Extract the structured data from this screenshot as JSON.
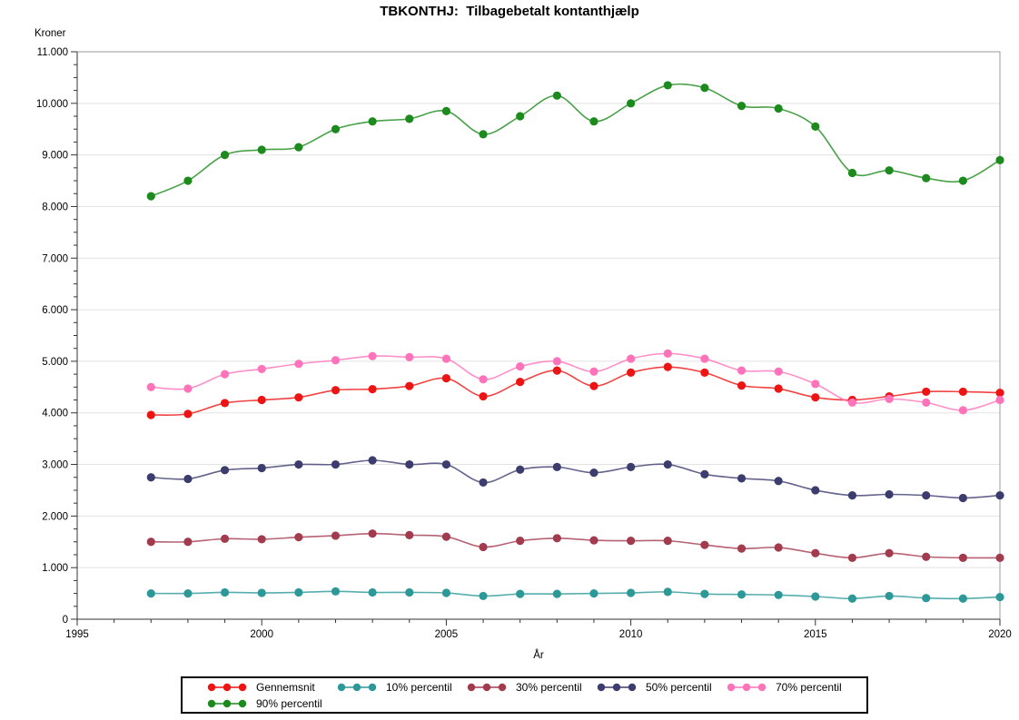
{
  "title": "TBKONTHJ:  Tilbagebetalt kontanthjælp",
  "chart_data": {
    "type": "line",
    "x": [
      1997,
      1998,
      1999,
      2000,
      2001,
      2002,
      2003,
      2004,
      2005,
      2006,
      2007,
      2008,
      2009,
      2010,
      2011,
      2012,
      2013,
      2014,
      2015,
      2016,
      2017,
      2018,
      2019,
      2020
    ],
    "xlabel": "År",
    "ylabel": "Kroner",
    "xlim": [
      1995,
      2020
    ],
    "ylim": [
      0,
      11000
    ],
    "x_ticks": [
      1995,
      2000,
      2005,
      2010,
      2015,
      2020
    ],
    "y_ticks": [
      0,
      1000,
      2000,
      3000,
      4000,
      5000,
      6000,
      7000,
      8000,
      9000,
      10000,
      11000
    ],
    "y_tick_labels": [
      "0",
      "1.000",
      "2.000",
      "3.000",
      "4.000",
      "5.000",
      "6.000",
      "7.000",
      "8.000",
      "9.000",
      "10.000",
      "11.000"
    ],
    "grid": "horizontal-major",
    "legend_position": "bottom",
    "frame_color": "#999999",
    "grid_color": "#e3e3e3",
    "axis_color": "#333333",
    "series": [
      {
        "name": "Gennemsnit",
        "color": "#ed1414",
        "values": [
          3960,
          3980,
          4190,
          4250,
          4300,
          4440,
          4460,
          4520,
          4670,
          4320,
          4600,
          4820,
          4520,
          4780,
          4890,
          4780,
          4530,
          4470,
          4300,
          4250,
          4320,
          4410,
          4410,
          4390
        ]
      },
      {
        "name": "10% percentil",
        "color": "#2d9898",
        "values": [
          500,
          500,
          520,
          510,
          520,
          540,
          520,
          520,
          510,
          450,
          490,
          490,
          500,
          510,
          530,
          490,
          480,
          470,
          440,
          400,
          450,
          410,
          400,
          430
        ]
      },
      {
        "name": "30% percentil",
        "color": "#a33b4f",
        "values": [
          1500,
          1500,
          1560,
          1550,
          1590,
          1620,
          1660,
          1630,
          1600,
          1400,
          1520,
          1570,
          1530,
          1520,
          1520,
          1440,
          1370,
          1390,
          1280,
          1190,
          1280,
          1210,
          1190,
          1190
        ]
      },
      {
        "name": "50% percentil",
        "color": "#3c3c6e",
        "values": [
          2750,
          2720,
          2890,
          2930,
          3000,
          3000,
          3080,
          3000,
          3000,
          2650,
          2900,
          2950,
          2840,
          2950,
          3000,
          2810,
          2730,
          2680,
          2500,
          2400,
          2420,
          2400,
          2350,
          2400
        ]
      },
      {
        "name": "70% percentil",
        "color": "#ff73ba",
        "values": [
          4500,
          4470,
          4750,
          4850,
          4950,
          5020,
          5100,
          5080,
          5050,
          4650,
          4900,
          5000,
          4800,
          5050,
          5150,
          5050,
          4820,
          4800,
          4560,
          4200,
          4270,
          4200,
          4050,
          4250
        ]
      },
      {
        "name": "90% percentil",
        "color": "#1c8a1c",
        "values": [
          8200,
          8500,
          9000,
          9100,
          9150,
          9500,
          9650,
          9700,
          9850,
          9400,
          9750,
          10150,
          9650,
          10000,
          10350,
          10300,
          9950,
          9900,
          9550,
          8650,
          8700,
          8550,
          8500,
          8900
        ]
      }
    ]
  }
}
